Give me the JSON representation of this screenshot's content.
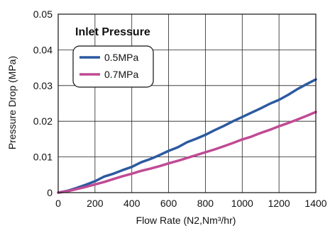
{
  "chart_data": {
    "type": "line",
    "xlabel": "Flow Rate (N2,Nm³/hr)",
    "ylabel": "Pressure Drop (MPa)",
    "xlim": [
      0,
      1400
    ],
    "ylim": [
      0,
      0.05
    ],
    "xticks": [
      0,
      200,
      400,
      600,
      800,
      1000,
      1200,
      1400
    ],
    "yticks": [
      0,
      0.01,
      0.02,
      0.03,
      0.04,
      0.05
    ],
    "xtick_labels": [
      "0",
      "200",
      "400",
      "600",
      "800",
      "1000",
      "1200",
      "1400"
    ],
    "ytick_labels": [
      "0",
      "0.01",
      "0.02",
      "0.03",
      "0.04",
      "0.05"
    ],
    "grid": true,
    "annotation": "Inlet Pressure",
    "legend_position": "top-left",
    "series": [
      {
        "name": "0.5MPa",
        "color": "#2c5aa0",
        "x": [
          0,
          50,
          100,
          150,
          200,
          250,
          300,
          350,
          400,
          450,
          500,
          550,
          600,
          650,
          700,
          750,
          800,
          850,
          900,
          950,
          1000,
          1050,
          1100,
          1150,
          1200,
          1250,
          1300,
          1350,
          1400
        ],
        "values": [
          0,
          0.0005,
          0.0013,
          0.0022,
          0.0032,
          0.0045,
          0.0053,
          0.0063,
          0.0072,
          0.0085,
          0.0094,
          0.0105,
          0.0117,
          0.0127,
          0.0141,
          0.0151,
          0.0162,
          0.0175,
          0.0187,
          0.02,
          0.0212,
          0.0224,
          0.0236,
          0.0249,
          0.026,
          0.0274,
          0.029,
          0.0304,
          0.0317
        ]
      },
      {
        "name": "0.7MPa",
        "color": "#c04a94",
        "x": [
          0,
          50,
          100,
          150,
          200,
          250,
          300,
          350,
          400,
          450,
          500,
          550,
          600,
          650,
          700,
          750,
          800,
          850,
          900,
          950,
          1000,
          1050,
          1100,
          1150,
          1200,
          1250,
          1300,
          1350,
          1400
        ],
        "values": [
          0,
          0.0004,
          0.001,
          0.0016,
          0.0023,
          0.003,
          0.0038,
          0.0046,
          0.0053,
          0.0061,
          0.0067,
          0.0074,
          0.0082,
          0.0089,
          0.0097,
          0.0105,
          0.0113,
          0.0121,
          0.013,
          0.0139,
          0.0149,
          0.0157,
          0.0167,
          0.0176,
          0.0186,
          0.0195,
          0.0205,
          0.0215,
          0.0226
        ]
      }
    ]
  }
}
